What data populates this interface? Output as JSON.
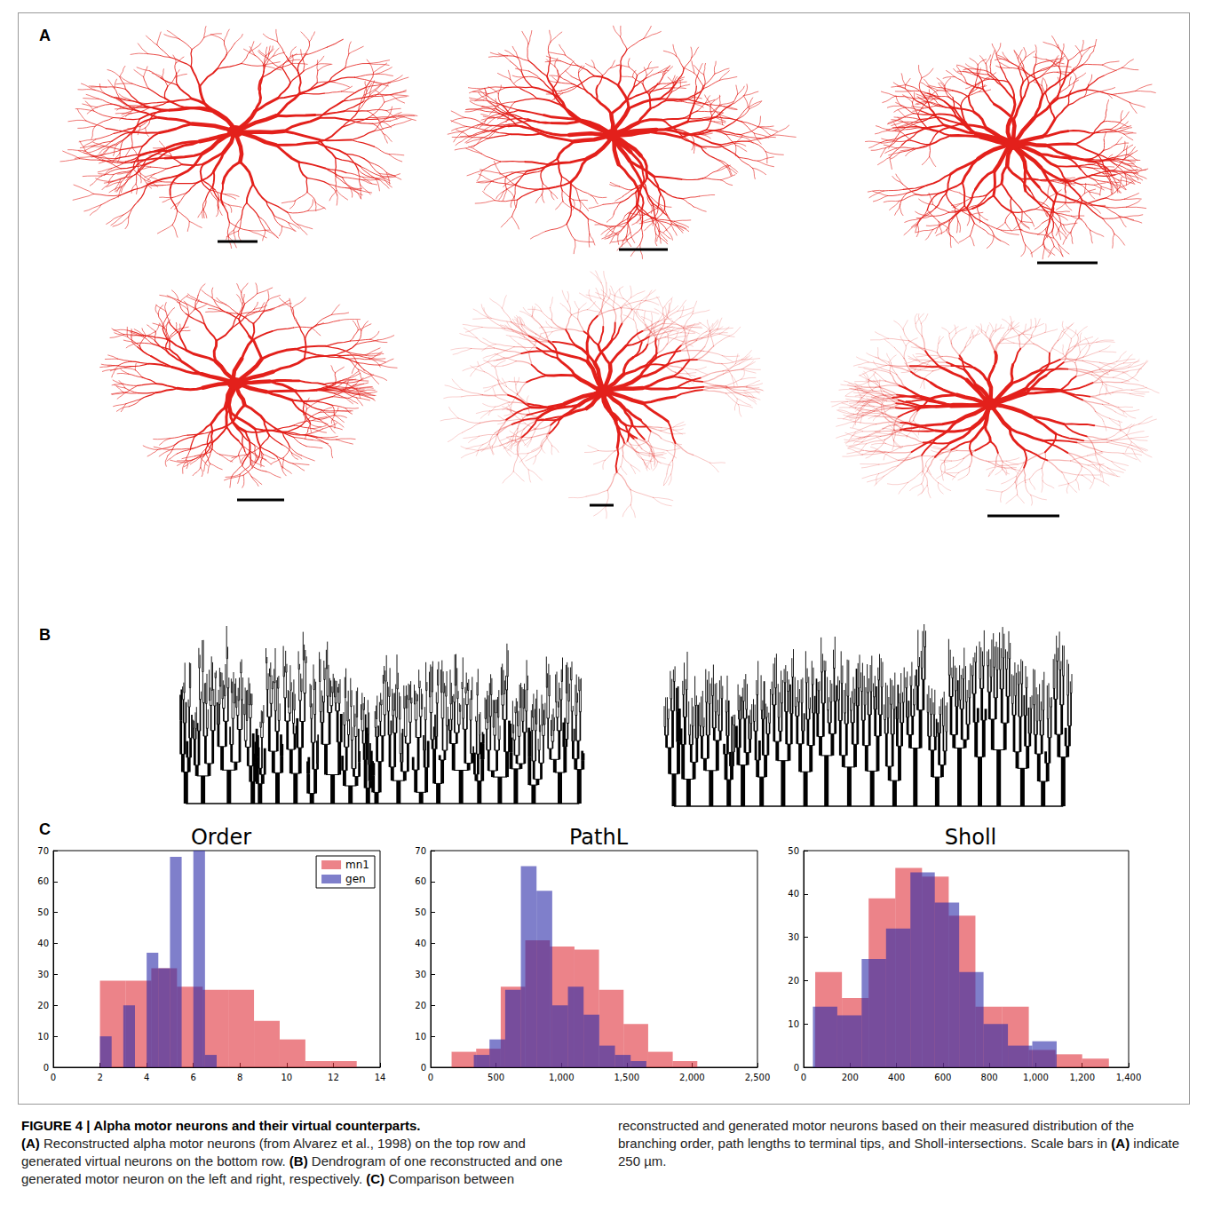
{
  "panel_labels": [
    "A",
    "B",
    "C"
  ],
  "chart_data": [
    {
      "type": "histogram",
      "title": "Order",
      "legend": "upper right",
      "series": [
        {
          "name": "mn1",
          "color": "#e0303a",
          "bins": [
            2,
            3.1,
            4.2,
            5.3,
            6.4,
            7.5,
            8.6,
            9.7,
            10.8,
            11.9,
            13
          ],
          "values": [
            28,
            28,
            32,
            26,
            25,
            25,
            15,
            9,
            2,
            2
          ]
        },
        {
          "name": "gen",
          "color": "#2a2aa8",
          "bins": [
            2,
            2.5,
            3,
            3.5,
            4,
            4.5,
            5,
            5.5,
            6,
            6.5,
            7
          ],
          "values": [
            10,
            0,
            20,
            0,
            37,
            32,
            68,
            0,
            70,
            4
          ]
        }
      ],
      "xlim": [
        0,
        14
      ],
      "xticks": [
        0,
        2,
        4,
        6,
        8,
        10,
        12,
        14
      ],
      "ylim": [
        0,
        70
      ],
      "yticks": [
        0,
        10,
        20,
        30,
        40,
        50,
        60,
        70
      ]
    },
    {
      "type": "histogram",
      "title": "PathL",
      "series": [
        {
          "name": "mn1",
          "color": "#e0303a",
          "bins": [
            160,
            348,
            536,
            724,
            912,
            1100,
            1288,
            1476,
            1664,
            1852,
            2040
          ],
          "values": [
            5,
            6,
            26,
            41,
            39,
            38,
            25,
            14,
            5,
            2
          ]
        },
        {
          "name": "gen",
          "color": "#2a2aa8",
          "bins": [
            330,
            450,
            570,
            690,
            810,
            930,
            1050,
            1170,
            1290,
            1410,
            1530,
            1650
          ],
          "values": [
            4,
            9,
            25,
            65,
            57,
            20,
            26,
            17,
            7,
            4,
            2
          ]
        }
      ],
      "xlim": [
        0,
        2500
      ],
      "xticks": [
        0,
        500,
        1000,
        1500,
        2000,
        2500
      ],
      "ylim": [
        0,
        70
      ],
      "yticks": [
        0,
        10,
        20,
        30,
        40,
        50,
        60,
        70
      ]
    },
    {
      "type": "histogram",
      "title": "Sholl",
      "series": [
        {
          "name": "mn1",
          "color": "#e0303a",
          "bins": [
            50,
            165,
            280,
            395,
            510,
            625,
            740,
            855,
            970,
            1085,
            1200,
            1315
          ],
          "values": [
            22,
            16,
            39,
            46,
            44,
            35,
            14,
            14,
            4,
            3,
            2
          ]
        },
        {
          "name": "gen",
          "color": "#2a2aa8",
          "bins": [
            40,
            145,
            250,
            355,
            460,
            565,
            670,
            775,
            880,
            985,
            1090
          ],
          "values": [
            14,
            12,
            25,
            32,
            45,
            38,
            22,
            10,
            5,
            6
          ]
        }
      ],
      "xlim": [
        0,
        1400
      ],
      "xticks": [
        0,
        200,
        400,
        600,
        800,
        1000,
        1200,
        1400
      ],
      "ylim": [
        0,
        50
      ],
      "yticks": [
        0,
        10,
        20,
        30,
        40,
        50
      ]
    }
  ],
  "caption": {
    "title": "FIGURE 4 | Alpha motor neurons and their virtual counterparts.",
    "text": "(A) Reconstructed alpha motor neurons (from Alvarez et al., 1998) on the top row and generated virtual neurons on the bottom row. (B) Dendrogram of one reconstructed and one generated motor neuron on the left and right, respectively. (C) Comparison between reconstructed and generated motor neurons based on their measured distribution of the branching order, path lengths to terminal tips, and Sholl-intersections. Scale bars in (A) indicate 250 µm."
  }
}
